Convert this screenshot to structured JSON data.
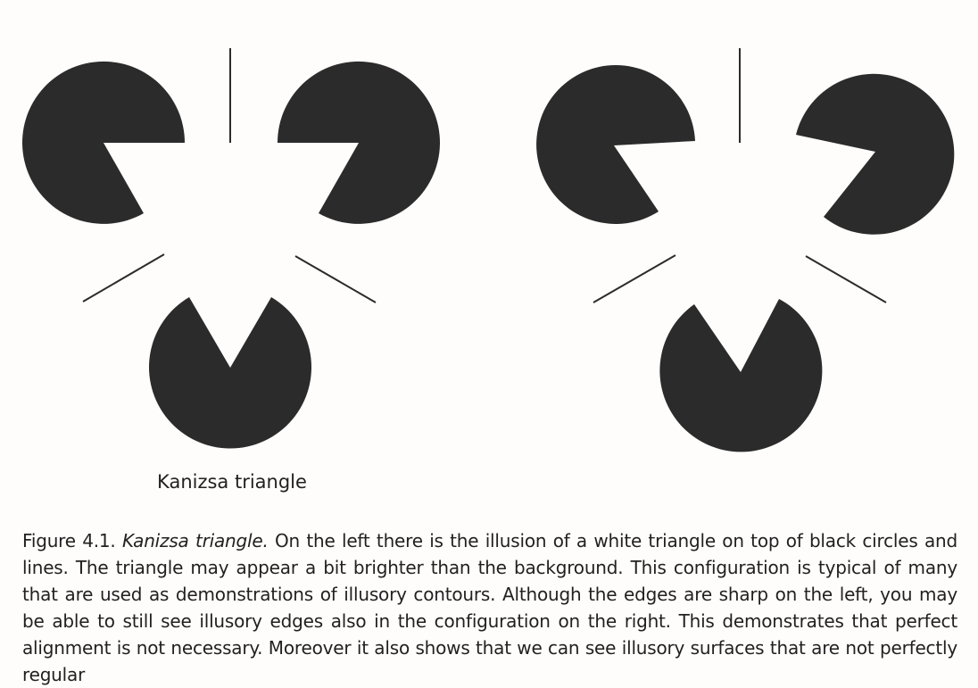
{
  "figure": {
    "panel_label": "Kanizsa triangle",
    "ink_color": "#2b2b2b",
    "background_color": "#fefdfb"
  },
  "caption": {
    "number": "Figure 4.1.",
    "title": "Kanizsa triangle.",
    "text": "On the left there is the illusion of a white triangle on top of black circles and lines. The triangle may appear a bit brighter than the background. This configuration is typical of many that are used as demonstrations of illusory contours. Although the edges are sharp on the left, you may be able to still see illusory edges also in the configuration on the right. This demonstrates that perfect alignment is not necessary. Moreover it also shows that we can see illusory surfaces that are not perfectly regular"
  }
}
